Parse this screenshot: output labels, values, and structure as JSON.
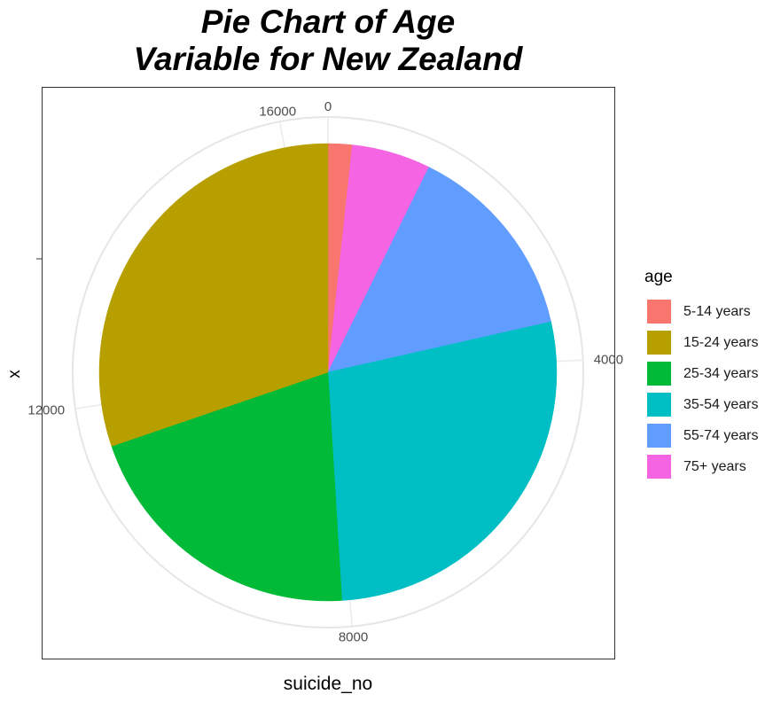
{
  "chart_data": {
    "type": "pie",
    "title_lines": [
      "Pie Chart of Age",
      "Variable for New Zealand"
    ],
    "xlabel": "suicide_no",
    "ylabel": "x",
    "total": 16500,
    "theta_ticks": [
      0,
      4000,
      8000,
      12000,
      16000
    ],
    "legend_title": "age",
    "legend_placement": "right",
    "grid": true,
    "slices": [
      {
        "label": "5-14 years",
        "value": 280,
        "color": "#F8766D"
      },
      {
        "label": "15-24 years",
        "value": 4990,
        "color": "#B79F00"
      },
      {
        "label": "25-34 years",
        "value": 3420,
        "color": "#00BA38"
      },
      {
        "label": "35-54 years",
        "value": 4550,
        "color": "#00BFC4"
      },
      {
        "label": "55-74 years",
        "value": 2340,
        "color": "#619CFF"
      },
      {
        "label": "75+ years",
        "value": 920,
        "color": "#F564E3"
      }
    ],
    "draw_order": [
      0,
      5,
      4,
      3,
      2,
      1
    ]
  }
}
